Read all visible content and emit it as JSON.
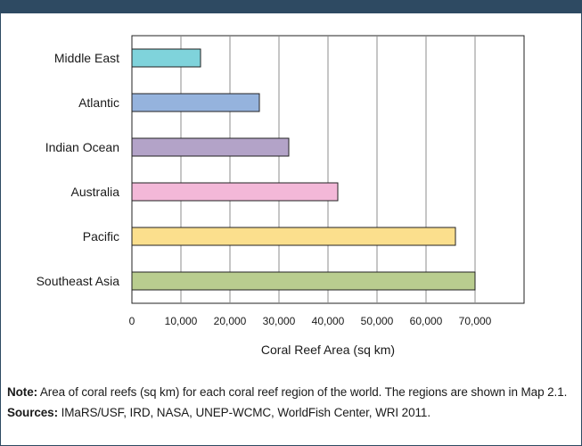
{
  "colors": {
    "header_bar": "#2e4a62",
    "gridline": "#8c8c8c",
    "bar_outline": "#222222"
  },
  "chart_data": {
    "type": "bar",
    "orientation": "horizontal",
    "categories": [
      "Middle East",
      "Atlantic",
      "Indian Ocean",
      "Australia",
      "Pacific",
      "Southeast Asia"
    ],
    "values": [
      14000,
      26000,
      32000,
      42000,
      66000,
      70000
    ],
    "colors": [
      "#7fd3db",
      "#95b3dd",
      "#b3a3c8",
      "#f3b8d8",
      "#fbdf8d",
      "#b9cd8f"
    ],
    "xlabel": "Coral Reef Area (sq km)",
    "xlim": [
      0,
      80000
    ],
    "xticks": [
      0,
      10000,
      20000,
      30000,
      40000,
      50000,
      60000,
      70000
    ],
    "xtick_labels": [
      "0",
      "10,000",
      "20,000",
      "30,000",
      "40,000",
      "50,000",
      "60,000",
      "70,000"
    ],
    "grid": true
  },
  "notes": {
    "note_label": "Note:",
    "note_text": " Area of coral reefs (sq km) for each coral reef region of the world. The regions are shown in Map 2.1.",
    "sources_label": "Sources:",
    "sources_text": " IMaRS/USF, IRD, NASA, UNEP-WCMC, WorldFish Center, WRI 2011."
  }
}
